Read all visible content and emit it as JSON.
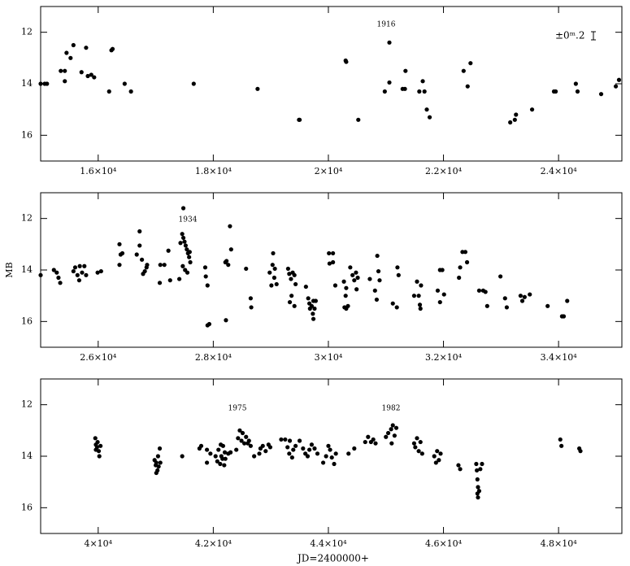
{
  "chart_data": [
    {
      "type": "scatter",
      "color": "#000000",
      "y_inverted": true,
      "xlim": [
        15000,
        25100
      ],
      "ylim": [
        11,
        17
      ],
      "xticks": [
        {
          "value": 16000,
          "label": "1.6×10⁴"
        },
        {
          "value": 18000,
          "label": "1.8×10⁴"
        },
        {
          "value": 20000,
          "label": "2×10⁴"
        },
        {
          "value": 22000,
          "label": "2.2×10⁴"
        },
        {
          "value": 24000,
          "label": "2.4×10⁴"
        }
      ],
      "yticks": [
        12,
        14,
        16
      ],
      "annotations": [
        "1916",
        "±0ᵐ.2"
      ],
      "x": [
        15000,
        15070,
        15110,
        15350,
        15420,
        15450,
        15420,
        15520,
        15570,
        15710,
        15790,
        15820,
        15880,
        15930,
        16190,
        16230,
        16250,
        16460,
        16570,
        17660,
        18770,
        19490,
        19500,
        20300,
        20310,
        20520,
        20980,
        21060,
        21060,
        21290,
        21330,
        21340,
        21580,
        21640,
        21670,
        21710,
        21760,
        22350,
        22420,
        22470,
        23160,
        23240,
        23260,
        23540,
        23920,
        23950,
        24300,
        24330,
        24740,
        24995,
        25050
      ],
      "values": [
        14.0,
        14.0,
        14.0,
        13.5,
        13.5,
        12.8,
        13.9,
        13.0,
        12.5,
        13.55,
        12.6,
        13.7,
        13.65,
        13.75,
        14.3,
        12.7,
        12.65,
        14.0,
        14.3,
        14.0,
        14.2,
        15.4,
        15.4,
        13.1,
        13.15,
        15.4,
        14.3,
        12.4,
        13.95,
        14.2,
        14.2,
        13.5,
        14.3,
        13.9,
        14.3,
        15.0,
        15.3,
        13.5,
        14.1,
        13.2,
        15.5,
        15.4,
        15.2,
        15.0,
        14.3,
        14.3,
        14.0,
        14.3,
        14.4,
        14.1,
        13.85
      ]
    },
    {
      "type": "scatter",
      "color": "#000000",
      "y_inverted": true,
      "xlim": [
        25000,
        35100
      ],
      "ylim": [
        11,
        17
      ],
      "xticks": [
        {
          "value": 26000,
          "label": "2.6×10⁴"
        },
        {
          "value": 28000,
          "label": "2.8×10⁴"
        },
        {
          "value": 30000,
          "label": "3×10⁴"
        },
        {
          "value": 32000,
          "label": "3.2×10⁴"
        },
        {
          "value": 34000,
          "label": "3.4×10⁴"
        }
      ],
      "yticks": [
        12,
        14,
        16
      ],
      "y_label": "MB",
      "annotations": [
        "1934"
      ],
      "x": [
        25000,
        25230,
        25280,
        25310,
        25340,
        25570,
        25600,
        25640,
        25670,
        25680,
        25720,
        25760,
        25790,
        25990,
        26050,
        26370,
        26390,
        26420,
        26370,
        26670,
        26720,
        26720,
        26760,
        26780,
        26810,
        26840,
        26850,
        27070,
        27080,
        27150,
        27220,
        27250,
        27410,
        27430,
        27480,
        27460,
        27480,
        27500,
        27520,
        27540,
        27560,
        27580,
        27600,
        27470,
        27510,
        27550,
        27590,
        27860,
        27870,
        27900,
        27900,
        27930,
        28210,
        28220,
        28260,
        28290,
        28310,
        28230,
        28570,
        28650,
        28660,
        28980,
        29010,
        29030,
        29040,
        29060,
        29070,
        29100,
        29300,
        29320,
        29330,
        29350,
        29360,
        29380,
        29410,
        29410,
        29430,
        29610,
        29650,
        29670,
        29680,
        29710,
        29730,
        29760,
        29740,
        29780,
        29740,
        30010,
        30020,
        30080,
        30080,
        30120,
        30270,
        30280,
        30310,
        30300,
        30340,
        30310,
        30380,
        30420,
        30450,
        30480,
        30490,
        30510,
        30720,
        30810,
        30850,
        30840,
        30870,
        30890,
        31120,
        31190,
        31200,
        31220,
        31490,
        31540,
        31570,
        31590,
        31600,
        31610,
        31900,
        31940,
        31980,
        31940,
        32010,
        32270,
        32290,
        32330,
        32380,
        32410,
        32620,
        32690,
        32730,
        32760,
        32990,
        33070,
        33100,
        33340,
        33370,
        33410,
        33500,
        33810,
        34060,
        34090,
        34150
      ],
      "values": [
        14.2,
        14.0,
        14.1,
        14.3,
        14.5,
        14.05,
        13.9,
        14.2,
        14.4,
        13.85,
        14.1,
        13.85,
        14.2,
        14.1,
        14.05,
        13.0,
        13.4,
        13.35,
        13.8,
        13.4,
        12.5,
        13.05,
        13.6,
        14.15,
        14.05,
        13.9,
        13.8,
        14.5,
        13.8,
        13.8,
        13.25,
        14.4,
        14.35,
        12.95,
        11.6,
        12.6,
        12.75,
        12.9,
        13.05,
        13.2,
        13.35,
        13.5,
        13.7,
        13.85,
        14.0,
        14.1,
        13.3,
        13.9,
        14.25,
        14.6,
        16.15,
        16.1,
        13.7,
        15.95,
        13.8,
        12.3,
        13.2,
        13.65,
        13.95,
        15.1,
        15.45,
        14.1,
        14.6,
        13.8,
        13.35,
        14.3,
        13.95,
        14.55,
        13.95,
        14.15,
        15.25,
        14.35,
        15.0,
        14.1,
        14.2,
        15.4,
        14.55,
        14.65,
        15.1,
        15.3,
        15.5,
        15.4,
        15.7,
        15.5,
        15.2,
        15.2,
        15.9,
        13.35,
        13.75,
        13.35,
        13.7,
        14.6,
        14.45,
        15.45,
        15.5,
        15.0,
        15.4,
        14.7,
        13.9,
        14.2,
        14.4,
        14.1,
        14.75,
        14.3,
        14.35,
        14.8,
        13.45,
        15.15,
        14.05,
        14.4,
        15.3,
        15.45,
        13.9,
        14.2,
        15.0,
        14.45,
        15.0,
        15.35,
        15.5,
        14.6,
        14.8,
        14.0,
        14.0,
        15.25,
        14.95,
        14.3,
        13.9,
        13.3,
        13.3,
        13.7,
        14.8,
        14.8,
        14.85,
        15.4,
        14.25,
        15.1,
        15.45,
        15.0,
        15.2,
        15.05,
        14.95,
        15.4,
        15.8,
        15.8,
        15.2
      ]
    },
    {
      "type": "scatter",
      "color": "#000000",
      "y_inverted": true,
      "xlim": [
        39000,
        49100
      ],
      "ylim": [
        11,
        17
      ],
      "xticks": [
        {
          "value": 40000,
          "label": "4×10⁴"
        },
        {
          "value": 42000,
          "label": "4.2×10⁴"
        },
        {
          "value": 44000,
          "label": "4.4×10⁴"
        },
        {
          "value": 46000,
          "label": "4.6×10⁴"
        },
        {
          "value": 48000,
          "label": "4.8×10⁴"
        }
      ],
      "yticks": [
        12,
        14,
        16
      ],
      "x_label": "JD=2400000+",
      "annotations": [
        "1975",
        "1982"
      ],
      "x": [
        39950,
        39960,
        39980,
        39990,
        40010,
        40020,
        40040,
        39960,
        40980,
        41000,
        41010,
        41030,
        41040,
        41050,
        41070,
        41080,
        41010,
        41460,
        41760,
        41790,
        41890,
        41890,
        41950,
        42040,
        42070,
        42090,
        42120,
        42130,
        42140,
        42160,
        42170,
        42190,
        42200,
        42210,
        42260,
        42300,
        42400,
        42430,
        42460,
        42490,
        42510,
        42540,
        42570,
        42600,
        42620,
        42650,
        42710,
        42800,
        42820,
        42860,
        42910,
        42960,
        42990,
        43180,
        43250,
        43290,
        43320,
        43330,
        43370,
        43390,
        43430,
        43500,
        43560,
        43600,
        43640,
        43670,
        43710,
        43760,
        43810,
        43910,
        43960,
        44000,
        44030,
        44060,
        44100,
        44130,
        44350,
        44450,
        44640,
        44690,
        44740,
        44780,
        44820,
        45000,
        45040,
        45090,
        45120,
        45150,
        45180,
        45100,
        45490,
        45510,
        45540,
        45570,
        45600,
        45630,
        45840,
        45870,
        45890,
        45920,
        45950,
        46260,
        46290,
        46570,
        46580,
        46590,
        46600,
        46590,
        46600,
        46620,
        46640,
        46670,
        48030,
        48050,
        48360,
        48380
      ],
      "values": [
        13.3,
        13.55,
        13.65,
        13.45,
        13.8,
        14.0,
        13.6,
        13.75,
        14.15,
        14.35,
        14.25,
        14.55,
        14.0,
        14.4,
        13.7,
        14.25,
        14.65,
        14.0,
        13.7,
        13.6,
        14.25,
        13.75,
        13.9,
        14.0,
        14.2,
        13.75,
        14.3,
        13.55,
        14.0,
        14.1,
        13.6,
        14.35,
        13.85,
        14.1,
        13.9,
        13.85,
        13.75,
        13.3,
        13.0,
        13.4,
        13.1,
        13.5,
        13.25,
        13.5,
        13.4,
        13.6,
        14.0,
        13.9,
        13.7,
        13.6,
        13.8,
        13.55,
        13.65,
        13.35,
        13.35,
        13.65,
        13.9,
        13.4,
        14.05,
        13.75,
        13.6,
        13.4,
        13.7,
        13.9,
        14.0,
        13.75,
        13.55,
        13.7,
        13.9,
        14.25,
        14.0,
        13.6,
        13.75,
        14.05,
        14.3,
        13.9,
        13.9,
        13.7,
        13.45,
        13.25,
        13.45,
        13.35,
        13.5,
        13.25,
        13.1,
        12.95,
        12.8,
        13.2,
        12.9,
        13.5,
        13.5,
        13.65,
        13.3,
        13.8,
        13.45,
        13.9,
        14.0,
        14.25,
        13.8,
        14.15,
        13.9,
        14.35,
        14.5,
        14.3,
        14.55,
        14.9,
        15.2,
        15.45,
        15.6,
        15.35,
        14.5,
        14.3,
        13.35,
        13.6,
        13.7,
        13.8
      ]
    }
  ]
}
